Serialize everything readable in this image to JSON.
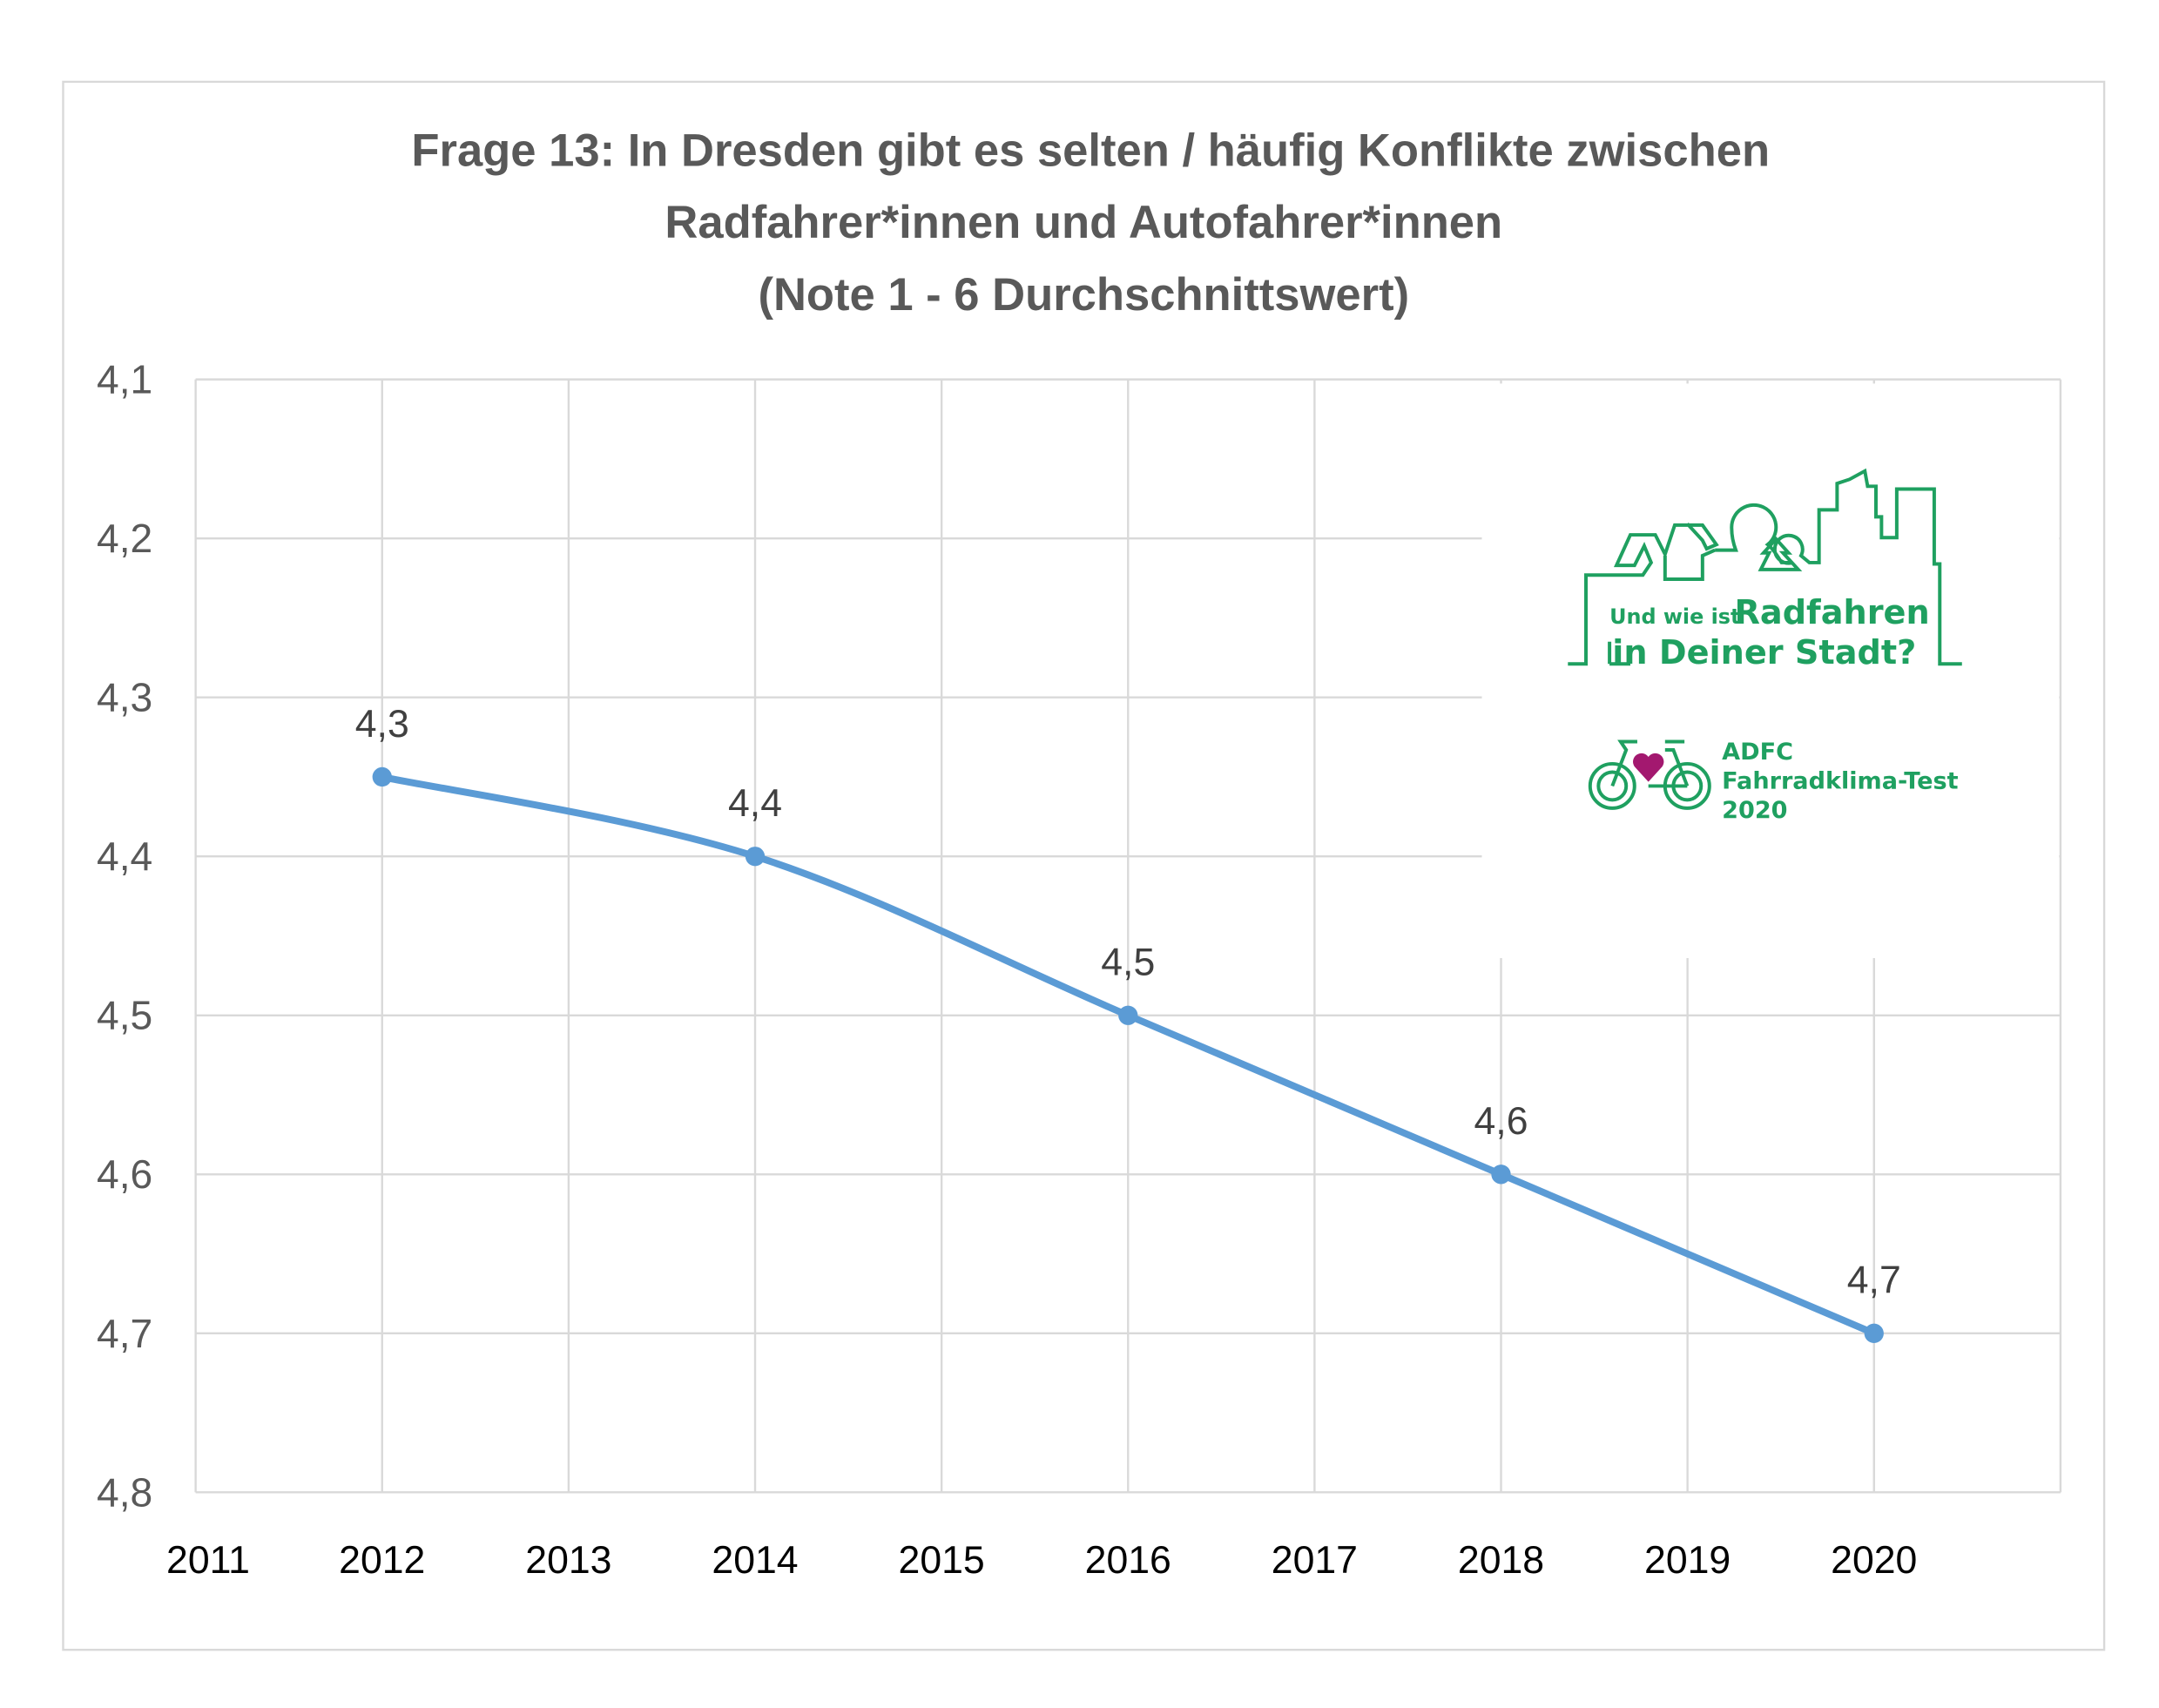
{
  "chart_data": {
    "type": "line",
    "title": [
      "Frage 13: In Dresden gibt es selten / häufig Konflikte zwischen",
      "Radfahrer*innen und Autofahrer*innen",
      "(Note 1 - 6 Durchschnittswert)"
    ],
    "xlabel": "",
    "ylabel": "",
    "x_ticks": [
      "2011",
      "2012",
      "2013",
      "2014",
      "2015",
      "2016",
      "2017",
      "2018",
      "2019",
      "2020"
    ],
    "xlim": [
      2011,
      2021
    ],
    "y_ticks": [
      "4,1",
      "4,2",
      "4,3",
      "4,4",
      "4,5",
      "4,6",
      "4,7",
      "4,8"
    ],
    "ylim": [
      4.1,
      4.8
    ],
    "y_reversed": true,
    "grid": true,
    "smoothed": true,
    "series": [
      {
        "x": [
          2012,
          2014,
          2016,
          2018,
          2020
        ],
        "values": [
          4.35,
          4.4,
          4.5,
          4.6,
          4.7
        ],
        "labels": [
          "4,3",
          "4,4",
          "4,5",
          "4,6",
          "4,7"
        ],
        "color": "#5b9bd5"
      }
    ]
  },
  "logo": {
    "line1_small": "Und wie ist",
    "line1_big": "Radfahren",
    "line2": "in Deiner Stadt?",
    "brand": "ADFC",
    "test_name": "Fahrradklima-Test",
    "year": "2020",
    "color": "#1fa060",
    "heart_color": "#a3186f"
  }
}
